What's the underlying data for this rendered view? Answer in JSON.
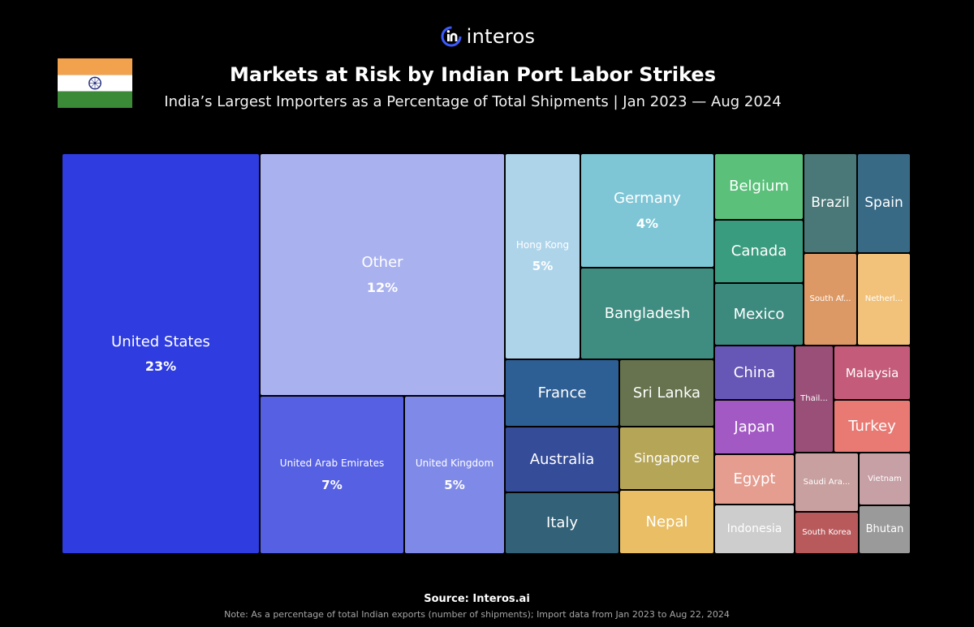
{
  "brand": {
    "name": "interos",
    "icon": "interos-logo-icon",
    "accent": "#3b5bff"
  },
  "flag": {
    "icon": "india-flag-icon",
    "colors": [
      "#F2A24C",
      "#FFFFFF",
      "#3B8A37"
    ],
    "chakra": "#1f2a7a"
  },
  "header": {
    "title": "Markets at Risk by Indian Port Labor Strikes",
    "subtitle": "India’s Largest Importers as a Percentage of Total Shipments |  Jan 2023 — Aug 2024"
  },
  "chart_data": {
    "type": "treemap",
    "title": "Markets at Risk by Indian Port Labor Strikes",
    "subtitle": "India’s Largest Importers as a Percentage of Total Shipments |  Jan 2023 — Aug 2024",
    "items": [
      {
        "name": "United States",
        "value": 23,
        "label": "23%",
        "color": "#2E3CE0"
      },
      {
        "name": "Other",
        "value": 12,
        "label": "12%",
        "color": "#A9B1EF"
      },
      {
        "name": "United Arab Emirates",
        "value": 7,
        "label": "7%",
        "color": "#5560E2"
      },
      {
        "name": "United Kingdom",
        "value": 5,
        "label": "5%",
        "color": "#7F8AE8"
      },
      {
        "name": "Hong Kong",
        "value": 5,
        "label": "5%",
        "color": "#AED4EA"
      },
      {
        "name": "Germany",
        "value": 4,
        "label": "4%",
        "color": "#7EC6D6"
      },
      {
        "name": "Bangladesh",
        "value": null,
        "label": "",
        "color": "#3F8C80"
      },
      {
        "name": "France",
        "value": null,
        "label": "",
        "color": "#2E5F94"
      },
      {
        "name": "Sri Lanka",
        "value": null,
        "label": "",
        "color": "#66734E"
      },
      {
        "name": "Australia",
        "value": null,
        "label": "",
        "color": "#354C99"
      },
      {
        "name": "Singapore",
        "value": null,
        "label": "",
        "color": "#B5A557"
      },
      {
        "name": "Italy",
        "value": null,
        "label": "",
        "color": "#336177"
      },
      {
        "name": "Nepal",
        "value": null,
        "label": "",
        "color": "#E9BE64"
      },
      {
        "name": "Belgium",
        "value": null,
        "label": "",
        "color": "#5AC07A"
      },
      {
        "name": "Canada",
        "value": null,
        "label": "",
        "color": "#3A9C7E"
      },
      {
        "name": "Mexico",
        "value": null,
        "label": "",
        "color": "#3C8A7E"
      },
      {
        "name": "Brazil",
        "value": null,
        "label": "",
        "color": "#4A7777"
      },
      {
        "name": "Spain",
        "value": null,
        "label": "",
        "color": "#386A86"
      },
      {
        "name": "South Af...",
        "value": null,
        "label": "",
        "color": "#DD9965"
      },
      {
        "name": "Netherl...",
        "value": null,
        "label": "",
        "color": "#F2C27A"
      },
      {
        "name": "China",
        "value": null,
        "label": "",
        "color": "#6656B5"
      },
      {
        "name": "Thail...",
        "value": null,
        "label": "",
        "color": "#9A4F78"
      },
      {
        "name": "Malaysia",
        "value": null,
        "label": "",
        "color": "#C45B7A"
      },
      {
        "name": "Japan",
        "value": null,
        "label": "",
        "color": "#A259C4"
      },
      {
        "name": "Turkey",
        "value": null,
        "label": "",
        "color": "#E97A73"
      },
      {
        "name": "Egypt",
        "value": null,
        "label": "",
        "color": "#E59D90"
      },
      {
        "name": "Saudi Ara...",
        "value": null,
        "label": "",
        "color": "#C8A0A0"
      },
      {
        "name": "Vietnam",
        "value": null,
        "label": "",
        "color": "#C7A0A6"
      },
      {
        "name": "Indonesia",
        "value": null,
        "label": "",
        "color": "#CDCDCD"
      },
      {
        "name": "South Korea",
        "value": null,
        "label": "",
        "color": "#B8595B"
      },
      {
        "name": "Bhutan",
        "value": null,
        "label": "",
        "color": "#9A9A9A"
      }
    ]
  },
  "footer": {
    "source": "Source: Interos.ai",
    "note": "Note: As a percentage of total Indian exports (number of shipments); Import data from Jan 2023 to Aug 22, 2024"
  }
}
